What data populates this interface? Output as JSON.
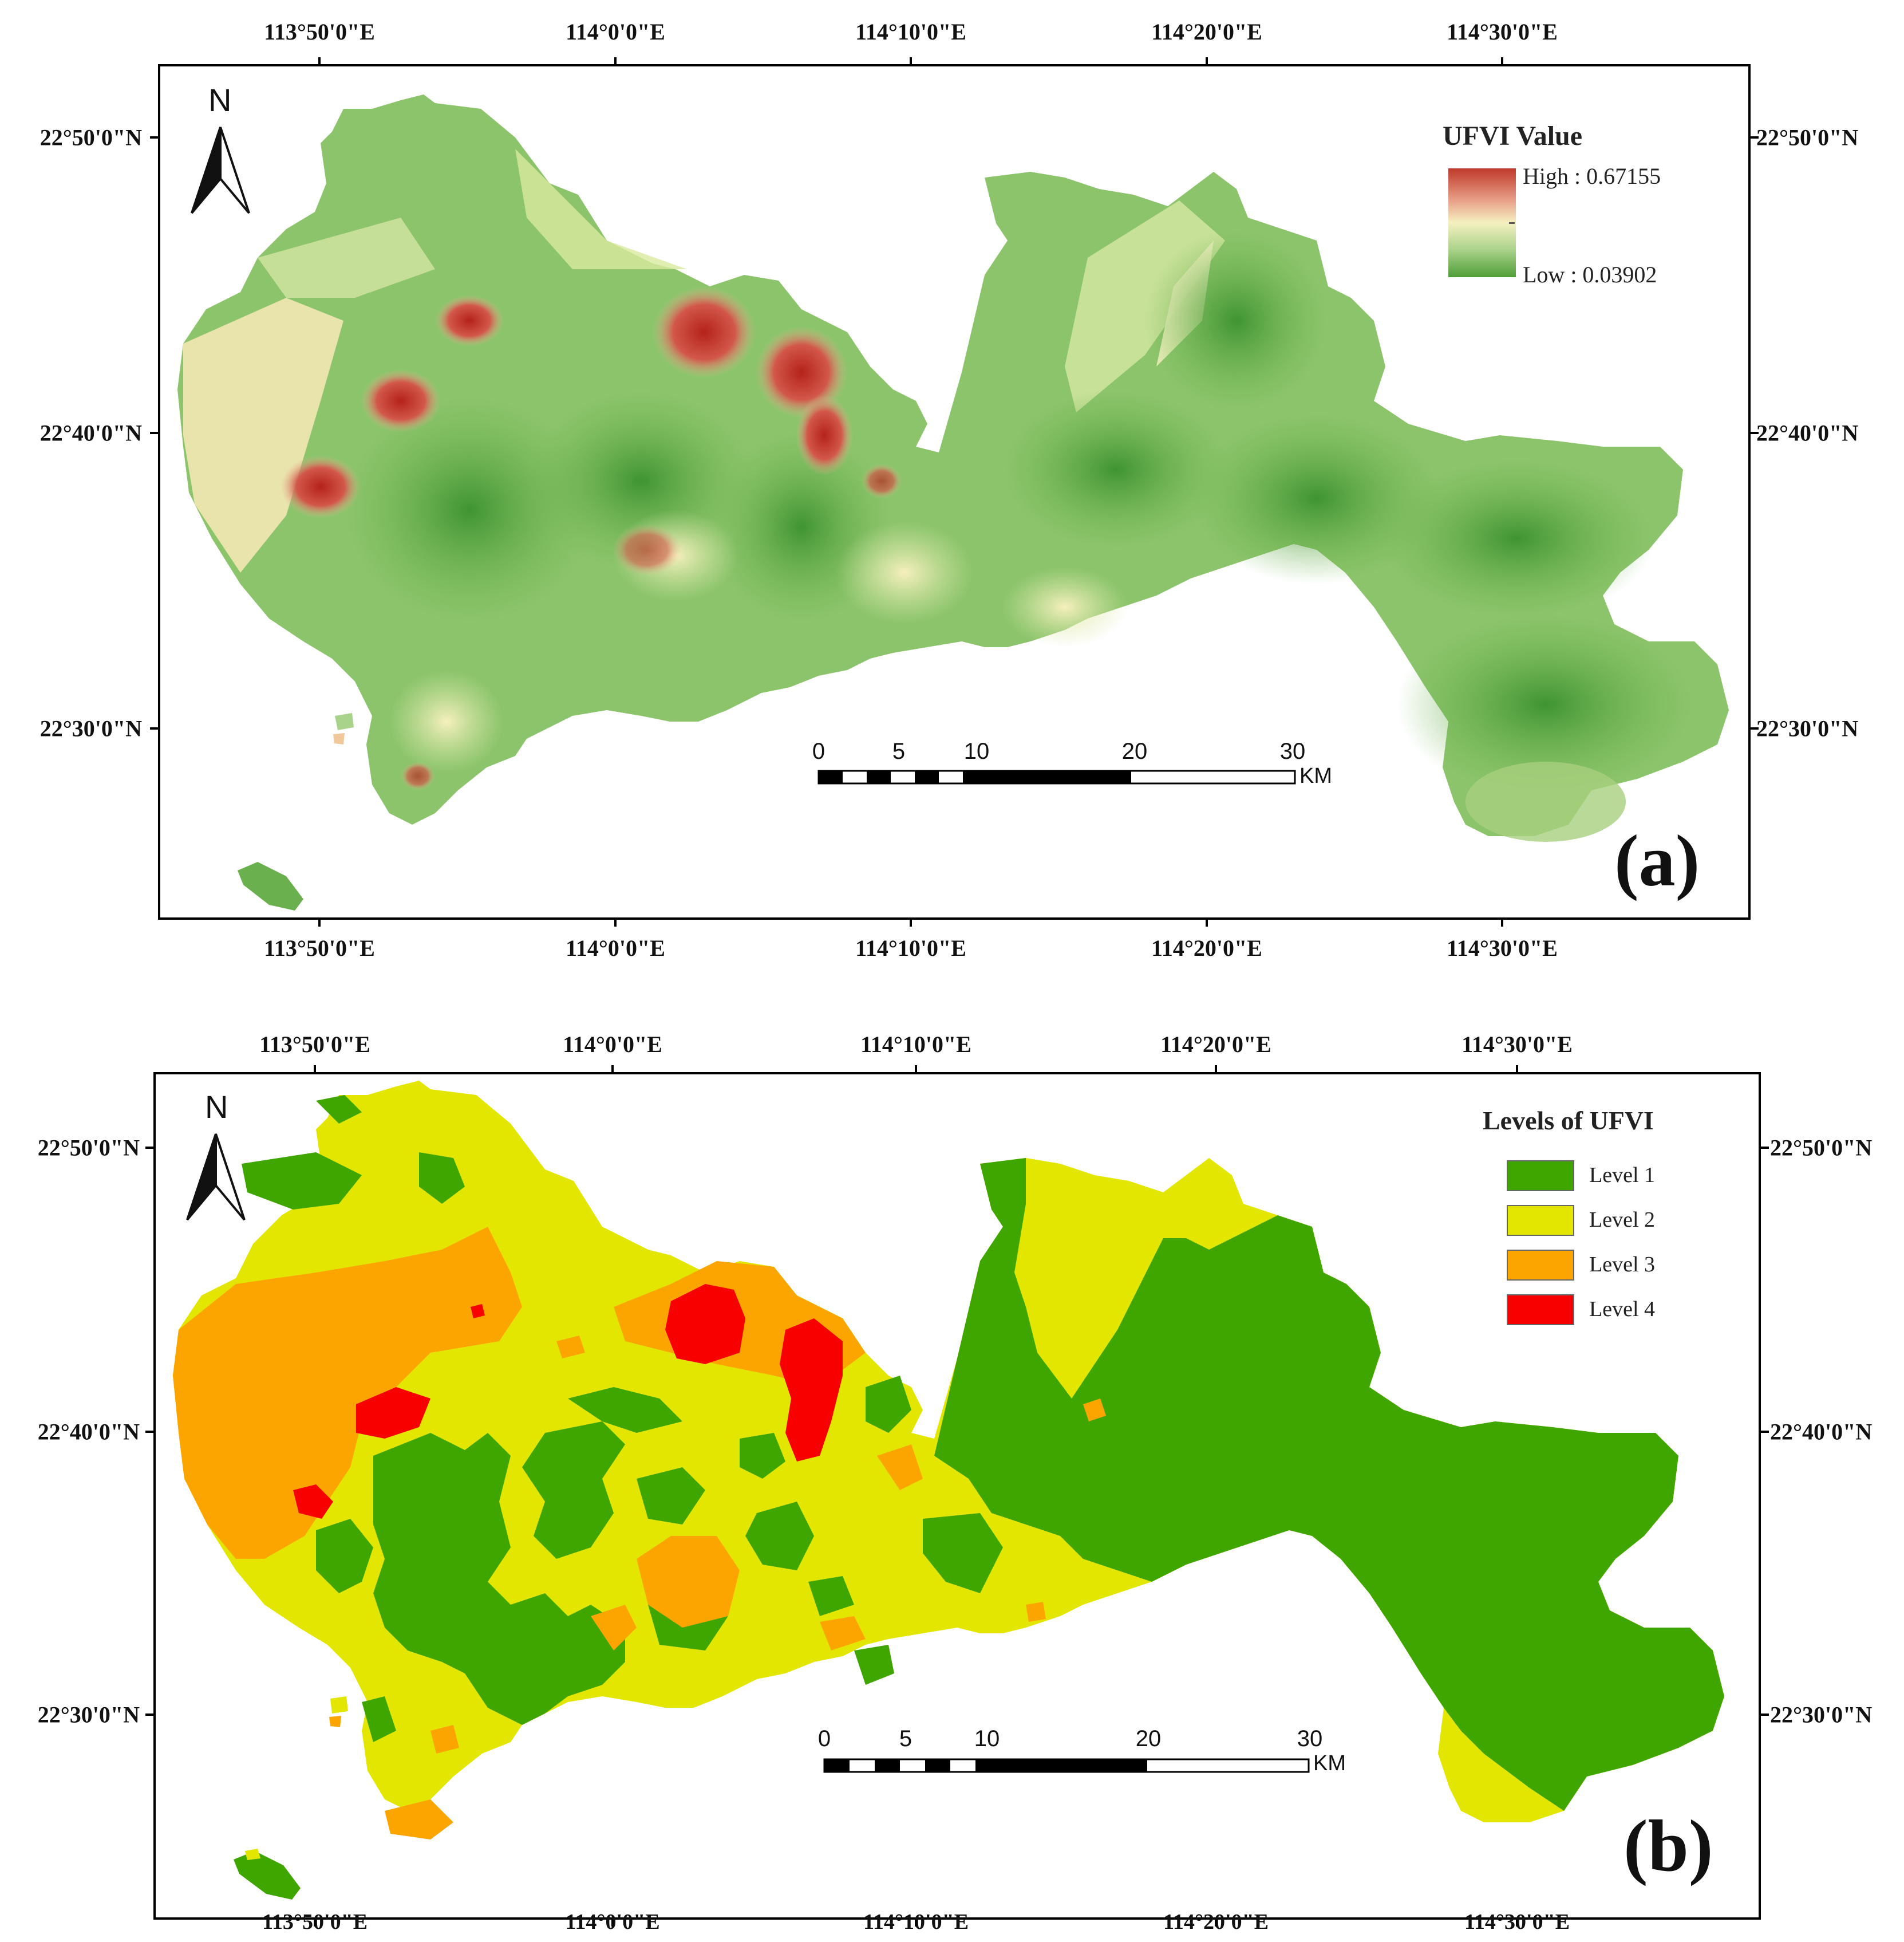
{
  "axes": {
    "lon_labels": [
      "113°50'0\"E",
      "114°0'0\"E",
      "114°10'0\"E",
      "114°20'0\"E",
      "114°30'0\"E"
    ],
    "lat_labels": [
      "22°50'0\"N",
      "22°40'0\"N",
      "22°30'0\"N"
    ]
  },
  "north_arrow": {
    "letter": "N",
    "icon": "north-arrow-icon"
  },
  "scale_bar": {
    "ticks": [
      "0",
      "5",
      "10",
      "20",
      "30"
    ],
    "unit": "KM"
  },
  "panel_a": {
    "label": "(a)",
    "legend_title": "UFVI Value",
    "high_label": "High : 0.67155",
    "low_label": "Low : 0.03902",
    "ramp_colors": [
      "#c0392b",
      "#e8a28a",
      "#f5f0c0",
      "#a9d28a",
      "#4f9e37"
    ]
  },
  "panel_b": {
    "label": "(b)",
    "legend_title": "Levels of UFVI",
    "levels": [
      {
        "name": "Level 1",
        "color": "#3fa600"
      },
      {
        "name": "Level 2",
        "color": "#e3e600"
      },
      {
        "name": "Level 3",
        "color": "#fca500"
      },
      {
        "name": "Level 4",
        "color": "#f90000"
      }
    ]
  }
}
